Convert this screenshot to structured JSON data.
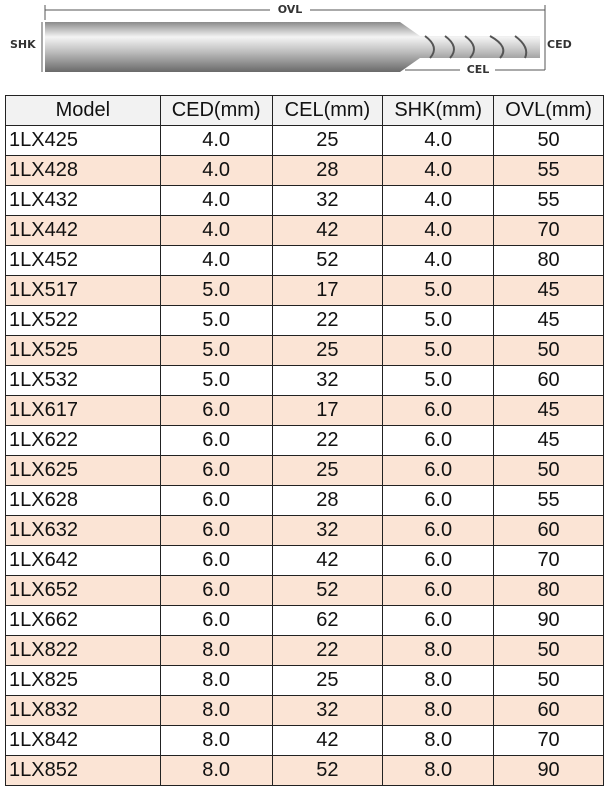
{
  "diagram": {
    "labels": {
      "ovl": "OVL",
      "shk": "SHK",
      "ced": "CED",
      "cel": "CEL"
    }
  },
  "table": {
    "header": [
      "Model",
      "CED(mm)",
      "CEL(mm)",
      "SHK(mm)",
      "OVL(mm)"
    ],
    "rows": [
      [
        "1LX425",
        "4.0",
        "25",
        "4.0",
        "50"
      ],
      [
        "1LX428",
        "4.0",
        "28",
        "4.0",
        "55"
      ],
      [
        "1LX432",
        "4.0",
        "32",
        "4.0",
        "55"
      ],
      [
        "1LX442",
        "4.0",
        "42",
        "4.0",
        "70"
      ],
      [
        "1LX452",
        "4.0",
        "52",
        "4.0",
        "80"
      ],
      [
        "1LX517",
        "5.0",
        "17",
        "5.0",
        "45"
      ],
      [
        "1LX522",
        "5.0",
        "22",
        "5.0",
        "45"
      ],
      [
        "1LX525",
        "5.0",
        "25",
        "5.0",
        "50"
      ],
      [
        "1LX532",
        "5.0",
        "32",
        "5.0",
        "60"
      ],
      [
        "1LX617",
        "6.0",
        "17",
        "6.0",
        "45"
      ],
      [
        "1LX622",
        "6.0",
        "22",
        "6.0",
        "45"
      ],
      [
        "1LX625",
        "6.0",
        "25",
        "6.0",
        "50"
      ],
      [
        "1LX628",
        "6.0",
        "28",
        "6.0",
        "55"
      ],
      [
        "1LX632",
        "6.0",
        "32",
        "6.0",
        "60"
      ],
      [
        "1LX642",
        "6.0",
        "42",
        "6.0",
        "70"
      ],
      [
        "1LX652",
        "6.0",
        "52",
        "6.0",
        "80"
      ],
      [
        "1LX662",
        "6.0",
        "62",
        "6.0",
        "90"
      ],
      [
        "1LX822",
        "8.0",
        "22",
        "8.0",
        "50"
      ],
      [
        "1LX825",
        "8.0",
        "25",
        "8.0",
        "50"
      ],
      [
        "1LX832",
        "8.0",
        "32",
        "8.0",
        "60"
      ],
      [
        "1LX842",
        "8.0",
        "42",
        "8.0",
        "70"
      ],
      [
        "1LX852",
        "8.0",
        "52",
        "8.0",
        "90"
      ]
    ]
  }
}
